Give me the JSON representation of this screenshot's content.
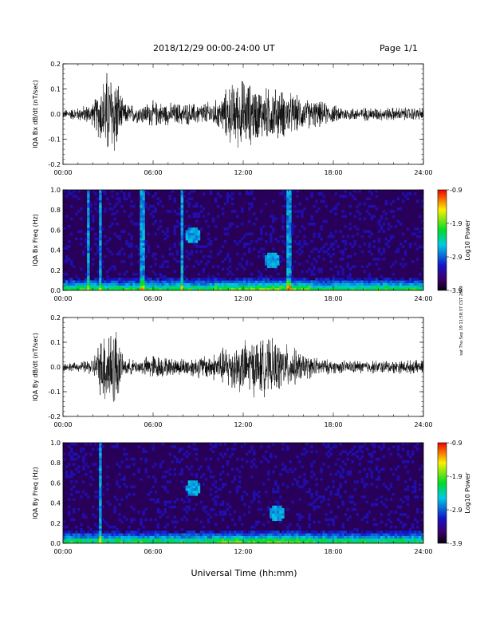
{
  "header": {
    "date_range": "2018/12/29  00:00-24:00 UT",
    "page": "Page 1/1"
  },
  "footer": {
    "x_axis_title": "Universal Time (hh:mm)",
    "side_note": "sat Thu Sep 19 11:58:37 CST 2019"
  },
  "chart_data": [
    {
      "type": "line",
      "title": "",
      "ylabel": "IQA Bx dB/dt (nT/sec)",
      "xlabel": "",
      "x_ticks": [
        "00:00",
        "06:00",
        "12:00",
        "18:00",
        "24:00"
      ],
      "xlim_hours": [
        0,
        24
      ],
      "ylim": [
        -0.2,
        0.2
      ],
      "y_ticks": [
        "-0.2",
        "-0.1",
        "0.0",
        "0.1",
        "0.2"
      ],
      "y_tick_values": [
        -0.2,
        -0.1,
        0.0,
        0.1,
        0.2
      ],
      "series": [
        {
          "color": "#000000",
          "envelope_hours": [
            0,
            1,
            2,
            2.9,
            3.5,
            4,
            5,
            6,
            7,
            8,
            9,
            10,
            10.5,
            11,
            12,
            13,
            14,
            15,
            16,
            17,
            18,
            19,
            20,
            21,
            22,
            23,
            24
          ],
          "envelope_amplitude": [
            0.02,
            0.03,
            0.05,
            0.2,
            0.2,
            0.05,
            0.04,
            0.06,
            0.05,
            0.05,
            0.05,
            0.06,
            0.07,
            0.13,
            0.16,
            0.12,
            0.12,
            0.1,
            0.07,
            0.06,
            0.04,
            0.03,
            0.03,
            0.03,
            0.03,
            0.03,
            0.03
          ]
        }
      ]
    },
    {
      "type": "heatmap",
      "title": "",
      "ylabel": "IQA Bx Freq (Hz)",
      "xlabel": "",
      "x_ticks": [
        "00:00",
        "06:00",
        "12:00",
        "18:00",
        "24:00"
      ],
      "xlim_hours": [
        0,
        24
      ],
      "ylim": [
        0.0,
        1.0
      ],
      "y_ticks": [
        "0.0",
        "0.2",
        "0.4",
        "0.6",
        "0.8",
        "1.0"
      ],
      "y_tick_values": [
        0.0,
        0.2,
        0.4,
        0.6,
        0.8,
        1.0
      ],
      "colorbar": {
        "label": "Log10 Power",
        "ticks": [
          "-0.9",
          "-1.9",
          "-2.9",
          "-3.9"
        ],
        "tick_values": [
          -0.9,
          -1.9,
          -2.9,
          -3.9
        ],
        "range": [
          -3.9,
          -0.9
        ]
      },
      "broadband_bursts_hours": [
        1.7,
        2.5,
        5.3,
        7.9,
        15.1
      ],
      "features": [
        {
          "t": 8.6,
          "f": 0.55
        },
        {
          "t": 13.9,
          "f": 0.3
        }
      ]
    },
    {
      "type": "line",
      "title": "",
      "ylabel": "IQA By dB/dt (nT/sec)",
      "xlabel": "",
      "x_ticks": [
        "00:00",
        "06:00",
        "12:00",
        "18:00",
        "24:00"
      ],
      "xlim_hours": [
        0,
        24
      ],
      "ylim": [
        -0.2,
        0.2
      ],
      "y_ticks": [
        "-0.2",
        "-0.1",
        "0.0",
        "0.1",
        "0.2"
      ],
      "y_tick_values": [
        -0.2,
        -0.1,
        0.0,
        0.1,
        0.2
      ],
      "series": [
        {
          "color": "#000000",
          "envelope_hours": [
            0,
            1,
            2,
            2.9,
            3.5,
            4,
            5,
            6,
            7,
            8,
            9,
            10,
            10.5,
            11,
            12,
            13,
            14,
            15,
            16,
            17,
            18,
            19,
            20,
            21,
            22,
            23,
            24
          ],
          "envelope_amplitude": [
            0.02,
            0.02,
            0.04,
            0.2,
            0.2,
            0.04,
            0.03,
            0.06,
            0.04,
            0.04,
            0.05,
            0.06,
            0.08,
            0.1,
            0.12,
            0.13,
            0.12,
            0.1,
            0.06,
            0.04,
            0.03,
            0.03,
            0.03,
            0.03,
            0.03,
            0.03,
            0.03
          ]
        }
      ]
    },
    {
      "type": "heatmap",
      "title": "",
      "ylabel": "IQA By Freq (Hz)",
      "xlabel": "",
      "x_ticks": [
        "00:00",
        "06:00",
        "12:00",
        "18:00",
        "24:00"
      ],
      "xlim_hours": [
        0,
        24
      ],
      "ylim": [
        0.0,
        1.0
      ],
      "y_ticks": [
        "0.0",
        "0.2",
        "0.4",
        "0.6",
        "0.8",
        "1.0"
      ],
      "y_tick_values": [
        0.0,
        0.2,
        0.4,
        0.6,
        0.8,
        1.0
      ],
      "colorbar": {
        "label": "Log10 Power",
        "ticks": [
          "-0.9",
          "-1.9",
          "-2.9",
          "-3.9"
        ],
        "tick_values": [
          -0.9,
          -1.9,
          -2.9,
          -3.9
        ],
        "range": [
          -3.9,
          -0.9
        ]
      },
      "broadband_bursts_hours": [
        2.5
      ],
      "features": [
        {
          "t": 8.7,
          "f": 0.55
        },
        {
          "t": 14.2,
          "f": 0.3
        }
      ]
    }
  ]
}
